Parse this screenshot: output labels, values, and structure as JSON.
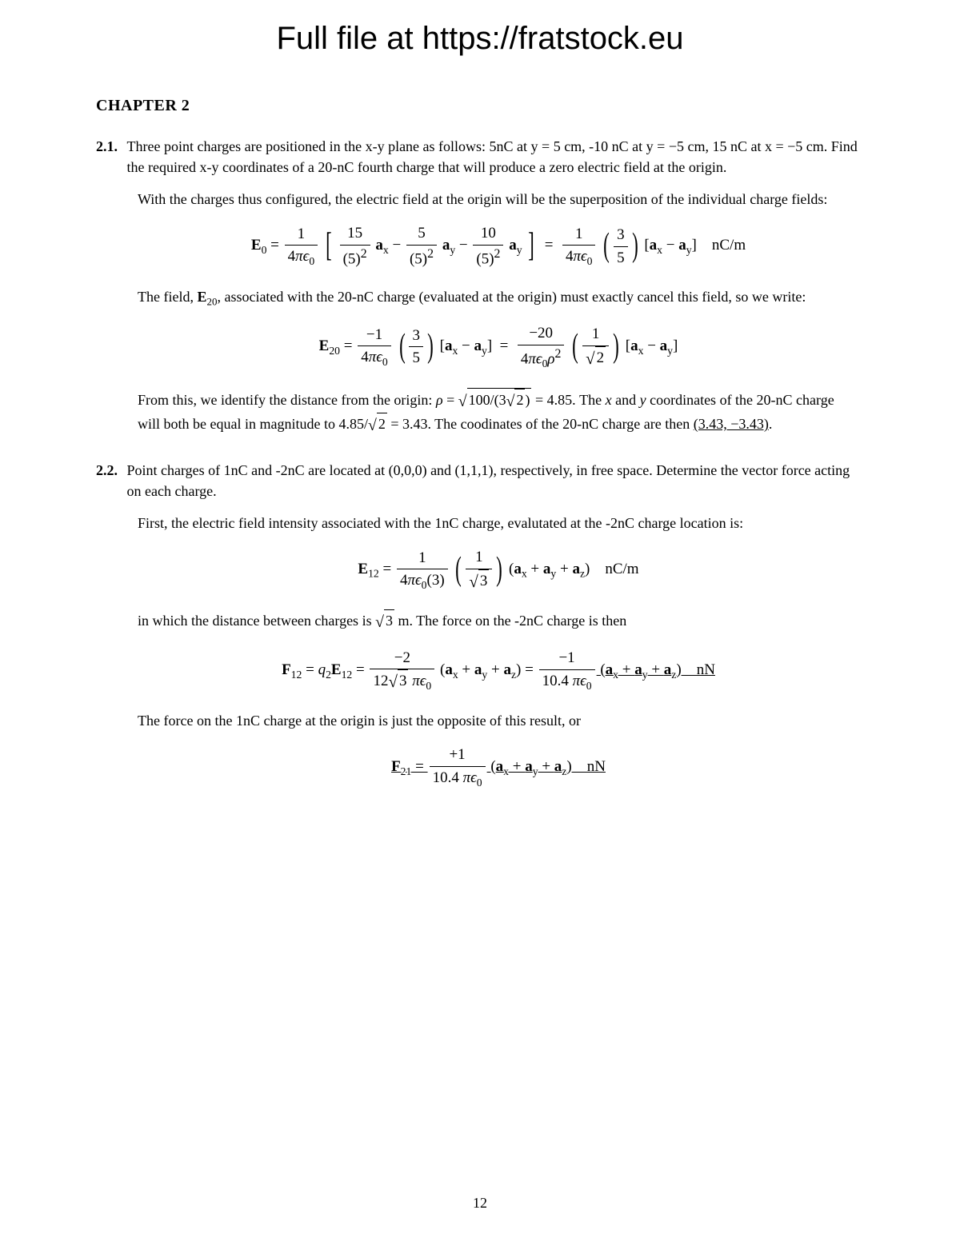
{
  "colors": {
    "background": "#ffffff",
    "text": "#000000"
  },
  "typography": {
    "body_family": "Times New Roman",
    "header_family": "Arial",
    "header_fontsize_pt": 30,
    "body_fontsize_pt": 13,
    "chapter_fontsize_pt": 15
  },
  "header": {
    "title": "Full file at https://fratstock.eu"
  },
  "chapter": {
    "label": "CHAPTER 2"
  },
  "problems": [
    {
      "number": "2.1.",
      "statement": "Three point charges are positioned in the x-y plane as follows: 5nC at y = 5 cm, -10 nC at y = −5 cm, 15 nC at x = −5 cm. Find the required x-y coordinates of a 20-nC fourth charge that will produce a zero electric field at the origin.",
      "solution": {
        "p1": "With the charges thus configured, the electric field at the origin will be the superposition of the individual charge fields:",
        "eq1_html": "<b>E</b><sub>0</sub> = <span class='frac'><span class='num'>1</span><span class='den'>4<span class='i'>πϵ</span><sub>0</sub></span></span> <span class='bigop'>[</span> <span class='frac'><span class='num'>15</span><span class='den'>(5)<sup>2</sup></span></span> <b>a</b><sub>x</sub> − <span class='frac'><span class='num'>5</span><span class='den'>(5)<sup>2</sup></span></span> <b>a</b><sub>y</sub> − <span class='frac'><span class='num'>10</span><span class='den'>(5)<sup>2</sup></span></span> <b>a</b><sub>y</sub> <span class='bigop'>]</span> &nbsp;=&nbsp; <span class='frac'><span class='num'>1</span><span class='den'>4<span class='i'>πϵ</span><sub>0</sub></span></span> <span class='bigop'>(</span><span class='frac'><span class='num'>3</span><span class='den'>5</span></span><span class='bigop'>)</span> [<b>a</b><sub>x</sub> − <b>a</b><sub>y</sub>] &nbsp;&nbsp; nC/m",
        "p2": "The field, <b>E</b><sub>20</sub>, associated with the 20-nC charge (evaluated at the origin) must exactly cancel this field, so we write:",
        "eq2_html": "<b>E</b><sub>20</sub> = <span class='frac'><span class='num'>−1</span><span class='den'>4<span class='i'>πϵ</span><sub>0</sub></span></span> <span class='bigop'>(</span><span class='frac'><span class='num'>3</span><span class='den'>5</span></span><span class='bigop'>)</span> [<b>a</b><sub>x</sub> − <b>a</b><sub>y</sub>] &nbsp;=&nbsp; <span class='frac'><span class='num'>−20</span><span class='den'>4<span class='i'>πϵ</span><sub>0</sub><span class='i'>ρ</span><sup>2</sup></span></span> <span class='bigop'>(</span><span class='frac'><span class='num'>1</span><span class='den'><span class='radic'>√</span><span class='sqrt'>2</span></span></span><span class='bigop'>)</span> [<b>a</b><sub>x</sub> − <b>a</b><sub>y</sub>]",
        "p3": "From this, we identify the distance from the origin: <span class='i'>ρ</span> = <span class='radic'>√</span><span class='sqrt'>100/(3<span class='radic'>√</span><span class='sqrt'>2</span>)</span> = 4.85. The <span class='i'>x</span> and <span class='i'>y</span> coordinates of the 20-nC charge will both be equal in magnitude to 4.85/<span class='radic'>√</span><span class='sqrt'>2</span> = 3.43. The coodinates of the 20-nC charge are then <span class='underline'>(3.43, −3.43)</span>."
      }
    },
    {
      "number": "2.2.",
      "statement": "Point charges of 1nC and -2nC are located at (0,0,0) and (1,1,1), respectively, in free space. Determine the vector force acting on each charge.",
      "solution": {
        "p1": "First, the electric field intensity associated with the 1nC charge, evalutated at the -2nC charge location is:",
        "eq1_html": "<b>E</b><sub>12</sub> = <span class='frac'><span class='num'>1</span><span class='den'>4<span class='i'>πϵ</span><sub>0</sub>(3)</span></span> <span class='bigop'>(</span><span class='frac'><span class='num'>1</span><span class='den'><span class='radic'>√</span><span class='sqrt'>3</span></span></span><span class='bigop'>)</span> (<b>a</b><sub>x</sub> + <b>a</b><sub>y</sub> + <b>a</b><sub>z</sub>) &nbsp;&nbsp; nC/m",
        "p2": "in which the distance between charges is <span class='radic'>√</span><span class='sqrt'>3</span> m. The force on the -2nC charge is then",
        "eq2_html": "<b>F</b><sub>12</sub> = <span class='i'>q</span><sub>2</sub><b>E</b><sub>12</sub> = <span class='frac'><span class='num'>−2</span><span class='den'>12<span class='radic'>√</span><span class='sqrt'>3</span> <span class='i'>πϵ</span><sub>0</sub></span></span> (<b>a</b><sub>x</sub> + <b>a</b><sub>y</sub> + <b>a</b><sub>z</sub>) = <span class='underline'><span class='frac'><span class='num'>−1</span><span class='den'>10.4 <span class='i'>πϵ</span><sub>0</sub></span></span> (<b>a</b><sub>x</sub> + <b>a</b><sub>y</sub> + <b>a</b><sub>z</sub>) &nbsp;&nbsp; nN</span>",
        "p3": "The force on the 1nC charge at the origin is just the opposite of this result, or",
        "eq3_html": "<span class='underline'><b>F</b><sub>21</sub> = <span class='frac'><span class='num'>+1</span><span class='den'>10.4 <span class='i'>πϵ</span><sub>0</sub></span></span> (<b>a</b><sub>x</sub> + <b>a</b><sub>y</sub> + <b>a</b><sub>z</sub>) &nbsp;&nbsp; nN</span>"
      }
    }
  ],
  "page_number": "12"
}
